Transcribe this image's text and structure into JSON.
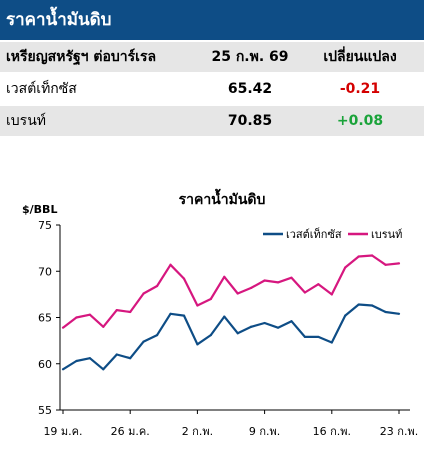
{
  "header": {
    "title": "ราคาน้ำมันดิบ"
  },
  "table": {
    "columns": [
      "เหรียญสหรัฐฯ ต่อบาร์เรล",
      "25 ก.พ. 69",
      "เปลี่ยนแปลง"
    ],
    "rows": [
      {
        "name": "เวสต์เท็กซัส",
        "price": "65.42",
        "change": "-0.21"
      },
      {
        "name": "เบรนท์",
        "price": "70.85",
        "change": "+0.08"
      }
    ]
  },
  "colors": {
    "wti": "#0e4d86",
    "brent": "#d6177f",
    "negative": "#d40000",
    "positive": "#1aa33a"
  },
  "chart_data": {
    "type": "line",
    "title": "ราคาน้ำมันดิบ",
    "ylabel": "$/BBL",
    "ylim": [
      55,
      75
    ],
    "yticks": [
      55,
      60,
      65,
      70,
      75
    ],
    "xtick_labels": [
      "19 ม.ค.",
      "26 ม.ค.",
      "2 ก.พ.",
      "9 ก.พ.",
      "16 ก.พ.",
      "23 ก.พ."
    ],
    "xtick_index": [
      0,
      5,
      10,
      15,
      20,
      25
    ],
    "legend": "top-right",
    "grid": false,
    "series": [
      {
        "name": "เวสต์เท็กซัส",
        "color": "#0e4d86",
        "values": [
          59.4,
          60.3,
          60.6,
          59.4,
          61.0,
          60.6,
          62.4,
          63.1,
          65.4,
          65.2,
          62.1,
          63.1,
          65.1,
          63.3,
          64.0,
          64.4,
          63.9,
          64.6,
          62.9,
          62.9,
          62.3,
          65.2,
          66.4,
          66.3,
          65.6,
          65.4
        ]
      },
      {
        "name": "เบรนท์",
        "color": "#d6177f",
        "values": [
          63.9,
          65.0,
          65.3,
          64.0,
          65.8,
          65.6,
          67.6,
          68.4,
          70.7,
          69.2,
          66.3,
          67.0,
          69.4,
          67.6,
          68.2,
          69.0,
          68.8,
          69.3,
          67.7,
          68.6,
          67.5,
          70.4,
          71.6,
          71.7,
          70.7,
          70.85
        ]
      }
    ]
  }
}
